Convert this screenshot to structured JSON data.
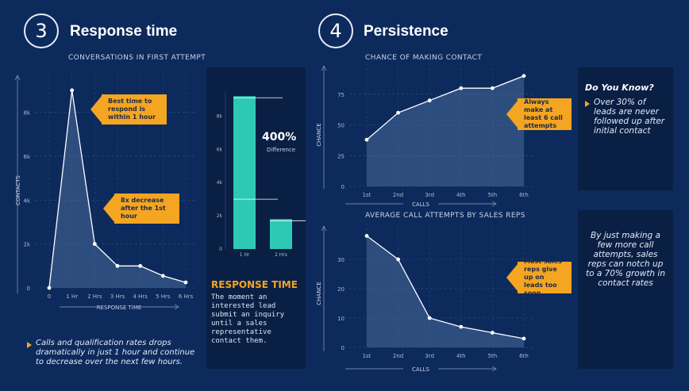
{
  "section3": {
    "number": "3",
    "title": "Response time",
    "chart_title": "CONVERSATIONS IN FIRST ATTEMPT",
    "callout_top": "Best time to respond is within 1 hour",
    "callout_mid": "8x decrease after the 1st hour",
    "note": "Calls and qualification rates drops dramatically in just 1 hour and continue to decrease over the next few hours."
  },
  "response_panel": {
    "big_value": "400%",
    "big_label": "Difference",
    "heading": "RESPONSE TIME",
    "text": "The moment an interested lead submit an inquiry until a sales representative contact them."
  },
  "section4": {
    "number": "4",
    "title": "Persistence",
    "chart1_title": "CHANCE OF MAKING CONTACT",
    "chart2_title": "AVERAGE CALL ATTEMPTS BY SALES REPS",
    "callout1": "Always make at least 6 call attempts",
    "callout2": "Most sales reps give up on leads too soon"
  },
  "side_panels": {
    "know_title": "Do You Know?",
    "know_text": "Over 30% of leads are never followed up after initial contact",
    "growth_text": "By just making a few more call attempts, sales reps can notch up to a 70% growth in contact rates"
  },
  "colors": {
    "background": "#0d2a5c",
    "panel": "#0a1f44",
    "accent": "#f4a522",
    "bar": "#2ec9b5",
    "area": "#4a6a9c"
  },
  "chart_data": [
    {
      "type": "area",
      "title": "CONVERSATIONS IN FIRST ATTEMPT",
      "xlabel": "RESPONSE TIME",
      "ylabel": "CONTACTS",
      "categories": [
        "0",
        "1 Hr",
        "2 Hrs",
        "3 Hrs",
        "4 Hrs",
        "5 Hrs",
        "6 Hrs"
      ],
      "values": [
        0,
        9000,
        2000,
        1000,
        1000,
        550,
        250
      ],
      "yticks": [
        "0",
        "2k",
        "4k",
        "6k",
        "8k"
      ],
      "ylim": [
        0,
        9500
      ]
    },
    {
      "type": "bar",
      "categories": [
        "1 Hr",
        "2 Hrs"
      ],
      "values": [
        9200,
        1800
      ],
      "yticks": [
        "0",
        "2k",
        "4k",
        "6k",
        "8k"
      ],
      "ylim": [
        0,
        9500
      ]
    },
    {
      "type": "area",
      "title": "CHANCE OF MAKING CONTACT",
      "xlabel": "CALLS",
      "ylabel": "CHANCE",
      "categories": [
        "1st",
        "2nd",
        "3rd",
        "4th",
        "5th",
        "6th"
      ],
      "values": [
        38,
        60,
        70,
        80,
        80,
        90
      ],
      "yticks": [
        "0",
        "25",
        "50",
        "75"
      ],
      "ylim": [
        0,
        95
      ]
    },
    {
      "type": "area",
      "title": "AVERAGE CALL ATTEMPTS BY SALES REPS",
      "xlabel": "CALLS",
      "ylabel": "CHANCE",
      "categories": [
        "1st",
        "2nd",
        "3rd",
        "4th",
        "5th",
        "6th"
      ],
      "values": [
        38,
        30,
        10,
        7,
        5,
        3
      ],
      "yticks": [
        "0",
        "10",
        "20",
        "30"
      ],
      "ylim": [
        0,
        40
      ]
    }
  ]
}
